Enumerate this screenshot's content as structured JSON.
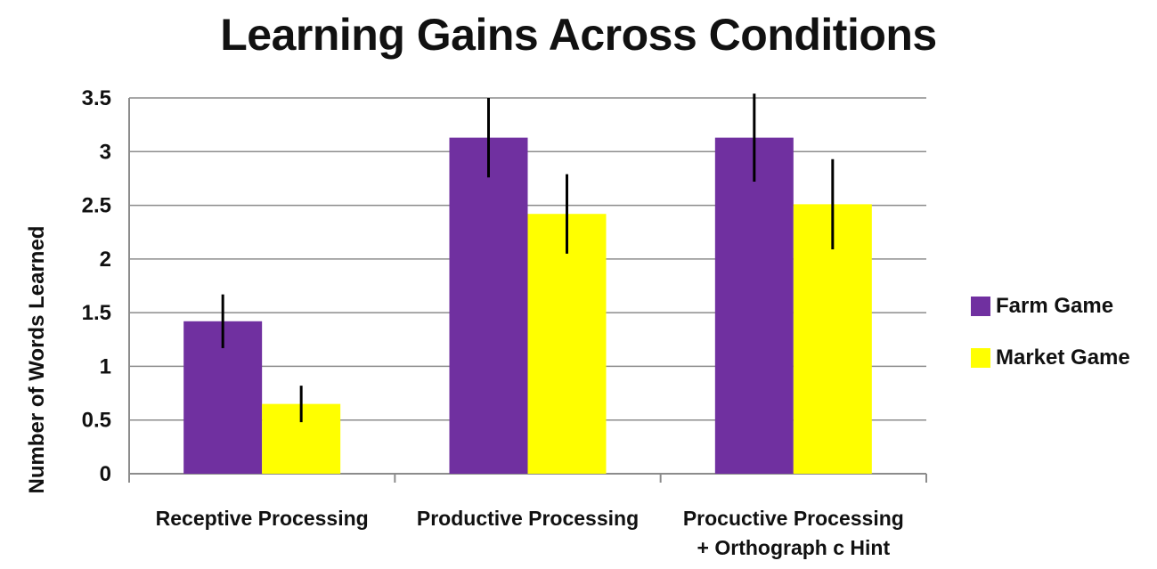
{
  "chart_data": {
    "type": "bar",
    "title": "Learning Gains Across Conditions",
    "xlabel": "",
    "ylabel": "Number of Words Learned",
    "ylim": [
      0,
      3.5
    ],
    "y_ticks": [
      "0",
      "0.5",
      "1",
      "1.5",
      "2",
      "2.5",
      "3",
      "3.5"
    ],
    "grid": "horizontal",
    "legend_position": "right",
    "categories": [
      [
        "Receptive Processing"
      ],
      [
        "Productive Processing"
      ],
      [
        "Procuctive Processing",
        "+ Orthograph c Hint"
      ]
    ],
    "series": [
      {
        "name": "Farm Game",
        "color": "#7030a0",
        "values": [
          1.42,
          3.13,
          3.13
        ],
        "error": [
          0.25,
          0.37,
          0.41
        ]
      },
      {
        "name": "Market Game",
        "color": "#ffff00",
        "values": [
          0.65,
          2.42,
          2.51
        ],
        "error": [
          0.17,
          0.37,
          0.42
        ]
      }
    ]
  }
}
